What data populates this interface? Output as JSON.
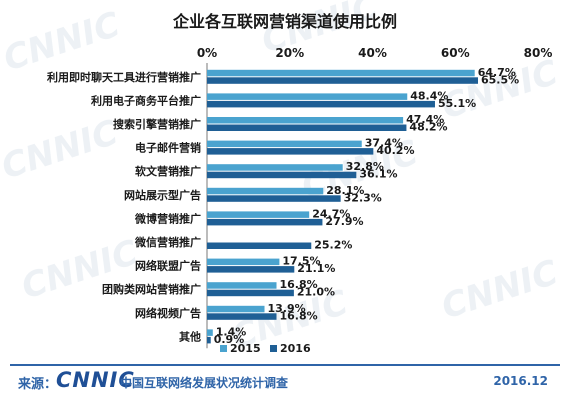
{
  "watermark": "CNNIC",
  "chart_data": {
    "type": "bar",
    "orientation": "horizontal",
    "title": "企业各互联网营销渠道使用比例",
    "x_ticks": [
      "0%",
      "20%",
      "40%",
      "60%",
      "80%"
    ],
    "xlim": [
      0,
      80
    ],
    "grid": false,
    "legend_position": "bottom",
    "categories": [
      "利用即时聊天工具进行营销推广",
      "利用电子商务平台推广",
      "搜索引擎营销推广",
      "电子邮件营销",
      "软文营销推广",
      "网站展示型广告",
      "微博营销推广",
      "微信营销推广",
      "网络联盟广告",
      "团购类网站营销推广",
      "网络视频广告",
      "其他"
    ],
    "series": [
      {
        "name": "2015",
        "color": "#4aa3cf",
        "values": [
          64.7,
          48.4,
          47.4,
          37.4,
          32.8,
          28.1,
          24.7,
          null,
          17.5,
          16.8,
          13.9,
          1.4
        ],
        "labels": [
          "64.7%",
          "48.4%",
          "47.4%",
          "37.4%",
          "32.8%",
          "28.1%",
          "24.7%",
          null,
          "17.5%",
          "16.8%",
          "13.9%",
          "1.4%"
        ]
      },
      {
        "name": "2016",
        "color": "#1f5f95",
        "values": [
          65.5,
          55.1,
          48.2,
          40.2,
          36.1,
          32.3,
          27.9,
          25.2,
          21.1,
          21.0,
          16.8,
          0.9
        ],
        "labels": [
          "65.5%",
          "55.1%",
          "48.2%",
          "40.2%",
          "36.1%",
          "32.3%",
          "27.9%",
          "25.2%",
          "21.1%",
          "21.0%",
          "16.8%",
          "0.9%"
        ]
      }
    ]
  },
  "footer": {
    "source_label": "来源：",
    "logo_text": "CNNIC",
    "source_name": "中国互联网络发展状况统计调查",
    "date": "2016.12"
  }
}
